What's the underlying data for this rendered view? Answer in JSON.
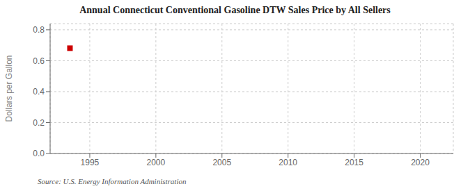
{
  "chart_data": {
    "type": "scatter",
    "title": "Annual Connecticut Conventional Gasoline DTW Sales Price by All Sellers",
    "y_label": "Dollars per Gallon",
    "annotation": "Source: U.S. Energy Information Administration",
    "x": [
      1993.5
    ],
    "values": [
      0.681
    ],
    "color": "#cc0000",
    "marker": "square",
    "xlim": [
      1992,
      2022.5
    ],
    "ylim": [
      0.0,
      0.84
    ],
    "xticks": [
      1995,
      2000,
      2005,
      2010,
      2015,
      2020
    ],
    "yticks": [
      {
        "value": 0.0,
        "label": "0.0"
      },
      0.2,
      0.4,
      0.6,
      0.8
    ],
    "grid": true
  }
}
